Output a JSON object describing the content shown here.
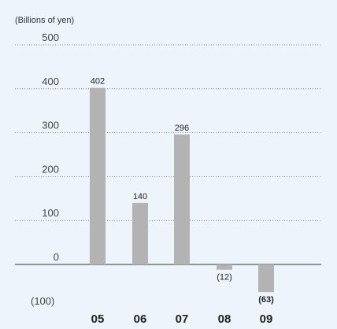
{
  "chart_data": {
    "type": "bar",
    "unit_label": "(Billions of yen)",
    "categories": [
      "05",
      "06",
      "07",
      "08",
      "09"
    ],
    "values": [
      402,
      140,
      296,
      -12,
      -63
    ],
    "value_labels": [
      "402",
      "140",
      "296",
      "(12)",
      "(63)"
    ],
    "bold_value_indices": [
      4
    ],
    "y_ticks": [
      {
        "value": 500,
        "label": "500"
      },
      {
        "value": 400,
        "label": "400"
      },
      {
        "value": 300,
        "label": "300"
      },
      {
        "value": 200,
        "label": "200"
      },
      {
        "value": 100,
        "label": "100"
      },
      {
        "value": 0,
        "label": "0"
      },
      {
        "value": -100,
        "label": "(100)"
      }
    ],
    "ylim": [
      -100,
      500
    ],
    "grid": true,
    "legend": "none",
    "colors": {
      "bar": "#b3b3b3",
      "background": "#eef4fb",
      "gridline": "#666666",
      "zero_line": "#333333"
    }
  }
}
